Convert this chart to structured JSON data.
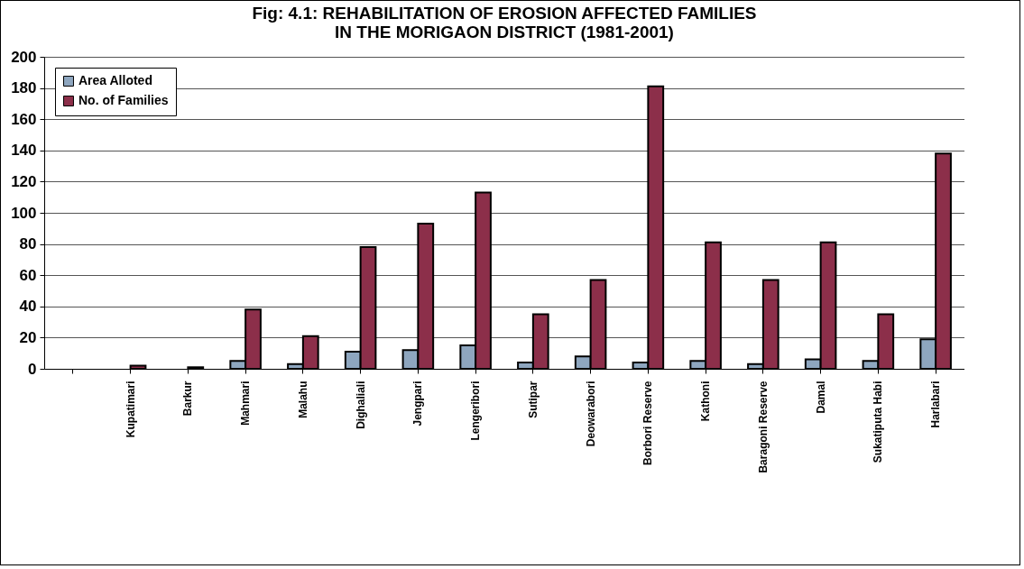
{
  "chart_data": {
    "type": "bar",
    "title": "Fig: 4.1: REHABILITATION OF EROSION AFFECTED FAMILIES\nIN THE MORIGAON DISTRICT (1981-2001)",
    "categories": [
      null,
      "Kupatimari",
      "Barkur",
      "Mahmari",
      "Malahu",
      "Dighaliali",
      "Jengpari",
      "Lengeribori",
      "Sutipar",
      "Deowarabori",
      "Borbori Reserve",
      "Kathoni",
      "Baragoni Reserve",
      "Damal",
      "Sukatiputa Habi",
      "Harlabari"
    ],
    "series": [
      {
        "name": "Area Alloted",
        "color": "#8ea6bf",
        "values": [
          null,
          null,
          null,
          5,
          3,
          11,
          12,
          15,
          4,
          8,
          4,
          5,
          3,
          6,
          5,
          19
        ]
      },
      {
        "name": "No. of Families",
        "color": "#8c2f4a",
        "values": [
          null,
          2,
          1,
          38,
          21,
          78,
          93,
          113,
          35,
          57,
          181,
          81,
          57,
          81,
          35,
          138
        ]
      }
    ],
    "ylim": [
      0,
      200
    ],
    "yticks": [
      0,
      20,
      40,
      60,
      80,
      100,
      120,
      140,
      160,
      180,
      200
    ],
    "grid": "y",
    "legend": "top left"
  }
}
